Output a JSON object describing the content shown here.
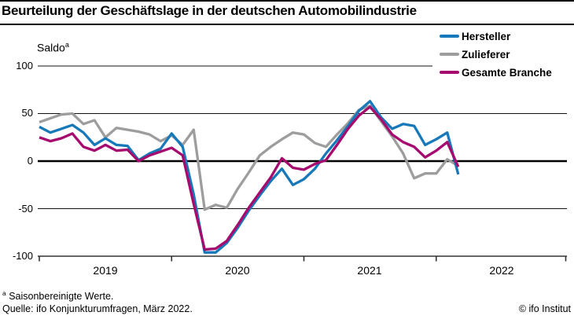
{
  "header": {
    "title": "Beurteilung der Geschäftslage in der deutschen Automobilindustrie"
  },
  "chart_data": {
    "type": "line",
    "title": "Beurteilung der Geschäftslage in der deutschen Automobilindustrie",
    "ylabel": "Saldo",
    "ylabel_superscript": "a",
    "ylim": [
      -100,
      100
    ],
    "y_ticks": [
      100,
      50,
      0,
      -50,
      -100
    ],
    "x_tick_labels": [
      "2019",
      "2020",
      "2021",
      "2022"
    ],
    "grid": true,
    "legend_position": "top-right",
    "x_months": [
      "2019-01",
      "2019-02",
      "2019-03",
      "2019-04",
      "2019-05",
      "2019-06",
      "2019-07",
      "2019-08",
      "2019-09",
      "2019-10",
      "2019-11",
      "2019-12",
      "2020-01",
      "2020-02",
      "2020-03",
      "2020-04",
      "2020-05",
      "2020-06",
      "2020-07",
      "2020-08",
      "2020-09",
      "2020-10",
      "2020-11",
      "2020-12",
      "2021-01",
      "2021-02",
      "2021-03",
      "2021-04",
      "2021-05",
      "2021-06",
      "2021-07",
      "2021-08",
      "2021-09",
      "2021-10",
      "2021-11",
      "2021-12",
      "2022-01",
      "2022-02",
      "2022-03"
    ],
    "series": [
      {
        "name": "Zulieferer",
        "color": "#9d9d9d",
        "values": [
          41,
          45,
          49,
          50,
          39,
          43,
          25,
          35,
          33,
          31,
          28,
          21,
          27,
          17,
          33,
          -51,
          -46,
          -49,
          -29,
          -12,
          6,
          15,
          23,
          30,
          28,
          19,
          15,
          28,
          40,
          54,
          58,
          42,
          26,
          8,
          -18,
          -13,
          -13,
          2,
          -5
        ]
      },
      {
        "name": "Hersteller",
        "color": "#1779ba",
        "values": [
          36,
          30,
          34,
          38,
          30,
          17,
          24,
          17,
          16,
          1,
          8,
          13,
          29,
          15,
          -35,
          -96,
          -96,
          -86,
          -70,
          -52,
          -36,
          -21,
          -8,
          -25,
          -19,
          -8,
          8,
          22,
          37,
          53,
          63,
          46,
          34,
          39,
          37,
          17,
          23,
          30,
          -14
        ]
      },
      {
        "name": "Gesamte Branche",
        "color": "#a60a6e",
        "values": [
          25,
          21,
          24,
          29,
          15,
          11,
          17,
          11,
          12,
          0,
          6,
          10,
          14,
          6,
          -45,
          -93,
          -92,
          -84,
          -67,
          -49,
          -33,
          -17,
          3,
          -7,
          -9,
          -3,
          1,
          17,
          34,
          48,
          57,
          44,
          28,
          20,
          15,
          4,
          11,
          20,
          -6
        ]
      }
    ],
    "legend_order": [
      "Hersteller",
      "Zulieferer",
      "Gesamte Branche"
    ]
  },
  "footnotes": {
    "note_marker": "a",
    "note_text": " Saisonbereinigte Werte.",
    "source": "Quelle: ifo Konjunkturumfragen, März 2022.",
    "copyright": "© ifo Institut"
  }
}
